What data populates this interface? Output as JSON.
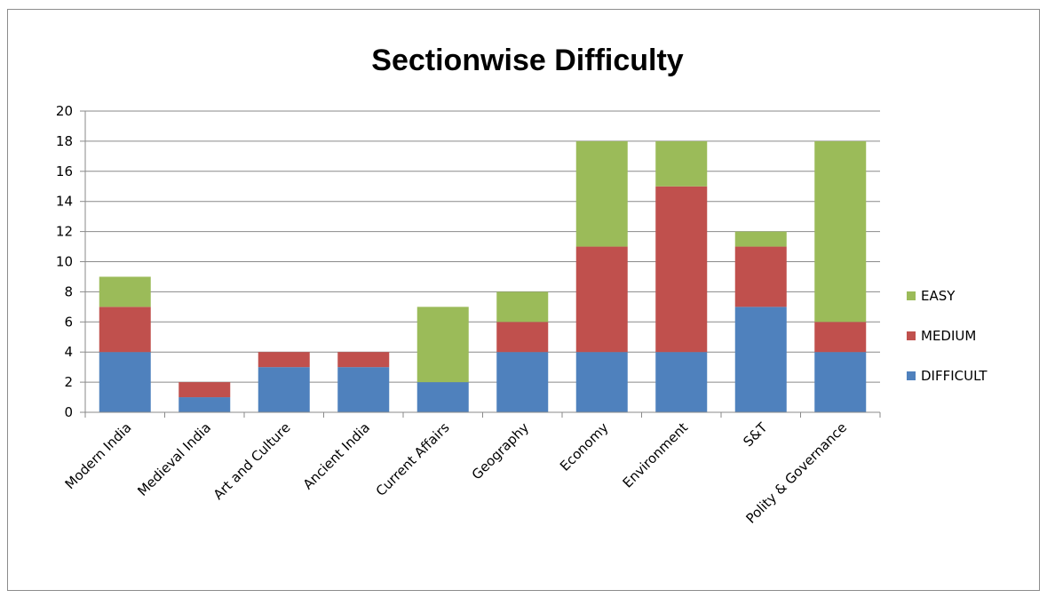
{
  "chart_data": {
    "type": "bar",
    "stacked": true,
    "title": "Sectionwise Difficulty",
    "xlabel": "",
    "ylabel": "",
    "ylim": [
      0,
      20
    ],
    "yticks": [
      0,
      2,
      4,
      6,
      8,
      10,
      12,
      14,
      16,
      18,
      20
    ],
    "grid": true,
    "legend_position": "right",
    "categories": [
      "Modern India",
      "Medieval India",
      "Art and Culture",
      "Ancient India",
      "Current Affairs",
      "Geography",
      "Economy",
      "Environment",
      "S&T",
      "Polity & Governance"
    ],
    "series": [
      {
        "name": "DIFFICULT",
        "color": "#4f81bd",
        "values": [
          4,
          1,
          3,
          3,
          2,
          4,
          4,
          4,
          7,
          4
        ]
      },
      {
        "name": "MEDIUM",
        "color": "#c0504d",
        "values": [
          3,
          1,
          1,
          1,
          0,
          2,
          7,
          11,
          4,
          2
        ]
      },
      {
        "name": "EASY",
        "color": "#9bbb59",
        "values": [
          2,
          0,
          0,
          0,
          5,
          2,
          7,
          3,
          1,
          12
        ]
      }
    ],
    "legend_order": [
      "EASY",
      "MEDIUM",
      "DIFFICULT"
    ]
  }
}
